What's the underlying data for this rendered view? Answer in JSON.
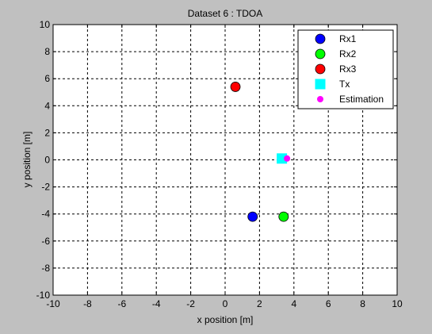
{
  "chart_data": {
    "type": "scatter",
    "title": "Dataset 6 : TDOA",
    "xlabel": "x position [m]",
    "ylabel": "y position [m]",
    "xlim": [
      -10,
      10
    ],
    "ylim": [
      -10,
      10
    ],
    "xticks": [
      -10,
      -8,
      -6,
      -4,
      -2,
      0,
      2,
      4,
      6,
      8,
      10
    ],
    "yticks": [
      -10,
      -8,
      -6,
      -4,
      -2,
      0,
      2,
      4,
      6,
      8,
      10
    ],
    "grid": true,
    "grid_style": "dashed",
    "legend_position": "top-right",
    "series": [
      {
        "name": "Rx1",
        "marker": "circle",
        "size": "large",
        "color": "#0000ff",
        "points": [
          {
            "x": 1.6,
            "y": -4.2
          }
        ]
      },
      {
        "name": "Rx2",
        "marker": "circle",
        "size": "large",
        "color": "#00ff00",
        "points": [
          {
            "x": 3.4,
            "y": -4.2
          }
        ]
      },
      {
        "name": "Rx3",
        "marker": "circle",
        "size": "large",
        "color": "#ff0000",
        "points": [
          {
            "x": 0.6,
            "y": 5.4
          }
        ]
      },
      {
        "name": "Tx",
        "marker": "square",
        "size": "large",
        "color": "#00ffff",
        "points": [
          {
            "x": 3.3,
            "y": 0.1
          }
        ]
      },
      {
        "name": "Estimation",
        "marker": "circle",
        "size": "small",
        "color": "#ff00ff",
        "points": [
          {
            "x": 3.6,
            "y": 0.1
          }
        ]
      }
    ]
  }
}
